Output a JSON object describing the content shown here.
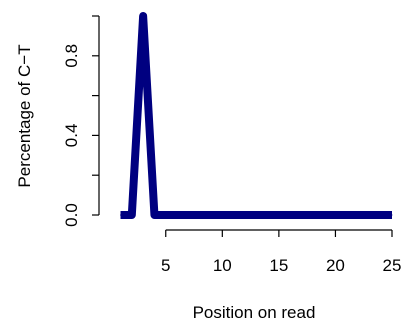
{
  "chart_data": {
    "type": "line",
    "title": "",
    "xlabel": "Position on read",
    "ylabel": "Percentage of C−T",
    "x": [
      1,
      2,
      3,
      4,
      5,
      6,
      7,
      8,
      9,
      10,
      11,
      12,
      13,
      14,
      15,
      16,
      17,
      18,
      19,
      20,
      21,
      22,
      23,
      24,
      25
    ],
    "series": [
      {
        "values": [
          0,
          0,
          1,
          0,
          0,
          0,
          0,
          0,
          0,
          0,
          0,
          0,
          0,
          0,
          0,
          0,
          0,
          0,
          0,
          0,
          0,
          0,
          0,
          0,
          0
        ],
        "color": "#000080"
      }
    ],
    "xticks": [
      "5",
      "10",
      "15",
      "20",
      "25"
    ],
    "yticks": [
      "0.0",
      "0.4",
      "0.8"
    ],
    "xlim": [
      1,
      25
    ],
    "ylim": [
      0,
      1
    ],
    "grid": false,
    "legend": "none"
  }
}
